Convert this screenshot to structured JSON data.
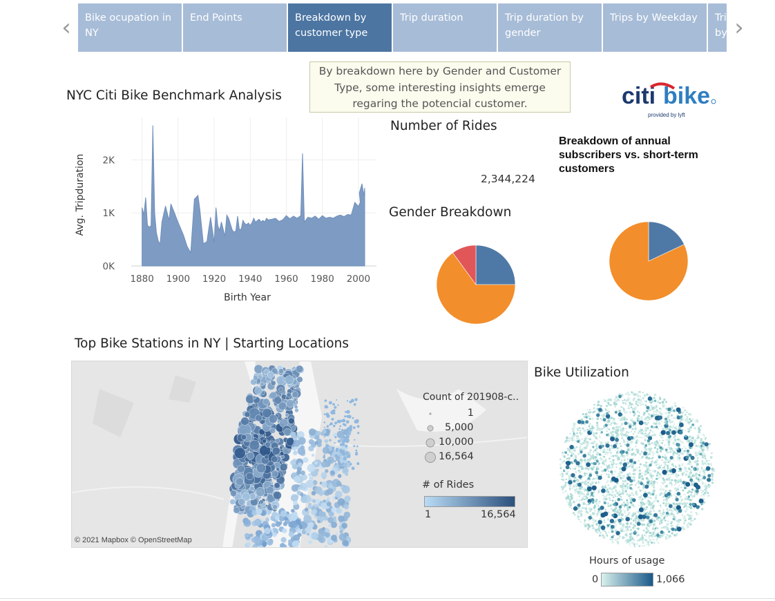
{
  "nav": {
    "prev_glyph": "‹",
    "next_glyph": "›",
    "tabs": [
      {
        "label": "Bike ocupation in NY",
        "active": false
      },
      {
        "label": "End Points",
        "active": false
      },
      {
        "label": "Breakdown by customer type",
        "active": true
      },
      {
        "label": "Trip duration",
        "active": false
      },
      {
        "label": "Trip duration by gender",
        "active": false
      },
      {
        "label": "Trips by Weekday",
        "active": false
      },
      {
        "label": "Trips by",
        "active": false
      }
    ]
  },
  "caption": "By breakdown here by Gender and Customer Type, some interesting insights emerge regaring the potencial customer.",
  "logo": {
    "brand_left": "citi",
    "brand_right": "bike",
    "tagline": "provided by lyft"
  },
  "titles": {
    "benchmark": "NYC Citi Bike Benchmark Analysis",
    "rides": "Number of Rides",
    "rides_value": "2,344,224",
    "gender": "Gender Breakdown",
    "subscribers": "Breakdown of annual subscribers vs. short-term customers",
    "stations": "Top Bike Stations in NY | Starting Locations",
    "utilization": "Bike Utilization"
  },
  "colors": {
    "blue": "#4e79a7",
    "orange": "#f28e2b",
    "red": "#e15759",
    "area": "#7e9cc3",
    "tab": "#a7bcd7",
    "tab_active": "#4c75a2"
  },
  "chart_data": [
    {
      "type": "area",
      "xlabel": "Birth Year",
      "ylabel": "Avg. Tripduration",
      "xticks": [
        1880,
        1900,
        1920,
        1940,
        1960,
        1980,
        2000
      ],
      "xtick_labels": [
        "1880",
        "1900",
        "1920",
        "1940",
        "1960",
        "1980",
        "2000"
      ],
      "yticks": [
        0,
        1000,
        2000
      ],
      "ytick_labels": [
        "0K",
        "1K",
        "2K"
      ],
      "xlim": [
        1874,
        2010
      ],
      "ylim": [
        0,
        2800
      ],
      "grid": true,
      "x": [
        1880,
        1881,
        1882,
        1883,
        1884,
        1885,
        1886,
        1887,
        1888,
        1889,
        1890,
        1891,
        1893,
        1895,
        1896,
        1898,
        1900,
        1903,
        1905,
        1907,
        1909,
        1911,
        1912,
        1914,
        1916,
        1917,
        1918,
        1920,
        1921,
        1922,
        1923,
        1924,
        1926,
        1927,
        1928,
        1930,
        1931,
        1932,
        1933,
        1934,
        1935,
        1936,
        1937,
        1938,
        1939,
        1940,
        1941,
        1942,
        1943,
        1944,
        1945,
        1946,
        1947,
        1948,
        1949,
        1950,
        1952,
        1954,
        1956,
        1958,
        1960,
        1962,
        1964,
        1966,
        1968,
        1969,
        1970,
        1972,
        1974,
        1976,
        1978,
        1980,
        1982,
        1984,
        1986,
        1988,
        1990,
        1992,
        1994,
        1996,
        1998,
        2000,
        2001,
        2000.5,
        2002,
        2003,
        2003.5
      ],
      "y": [
        1100,
        960,
        1290,
        770,
        730,
        760,
        2650,
        1000,
        620,
        470,
        410,
        830,
        1130,
        860,
        1170,
        1000,
        820,
        580,
        370,
        250,
        1260,
        1330,
        1080,
        420,
        460,
        700,
        920,
        440,
        1100,
        760,
        670,
        830,
        560,
        960,
        900,
        680,
        640,
        660,
        940,
        680,
        700,
        860,
        800,
        780,
        810,
        760,
        820,
        900,
        820,
        860,
        880,
        830,
        860,
        830,
        900,
        870,
        880,
        900,
        840,
        870,
        950,
        890,
        940,
        900,
        950,
        2120,
        830,
        920,
        900,
        940,
        880,
        950,
        900,
        920,
        900,
        940,
        960,
        930,
        970,
        960,
        1200,
        1120,
        1200,
        1380,
        1550,
        1330,
        1470
      ],
      "series_color": "#7e9cc3"
    },
    {
      "type": "pie",
      "labels": [
        "Blue",
        "Orange",
        "Red"
      ],
      "values": [
        25,
        65,
        10
      ],
      "colors": [
        "#4e79a7",
        "#f28e2b",
        "#e15759"
      ]
    },
    {
      "type": "pie",
      "labels": [
        "Blue",
        "Orange"
      ],
      "values": [
        18,
        82
      ],
      "colors": [
        "#4e79a7",
        "#f28e2b"
      ]
    }
  ],
  "map": {
    "attribution": "© 2021 Mapbox © OpenStreetMap",
    "size_legend_title": "Count of 201908-c..",
    "size_legend_values": [
      "1",
      "5,000",
      "10,000",
      "16,564"
    ],
    "color_legend_title": "# of Rides",
    "color_min": "1",
    "color_max": "16,564"
  },
  "utilization": {
    "legend_title": "Hours of usage",
    "min": "0",
    "max": "1,066"
  }
}
